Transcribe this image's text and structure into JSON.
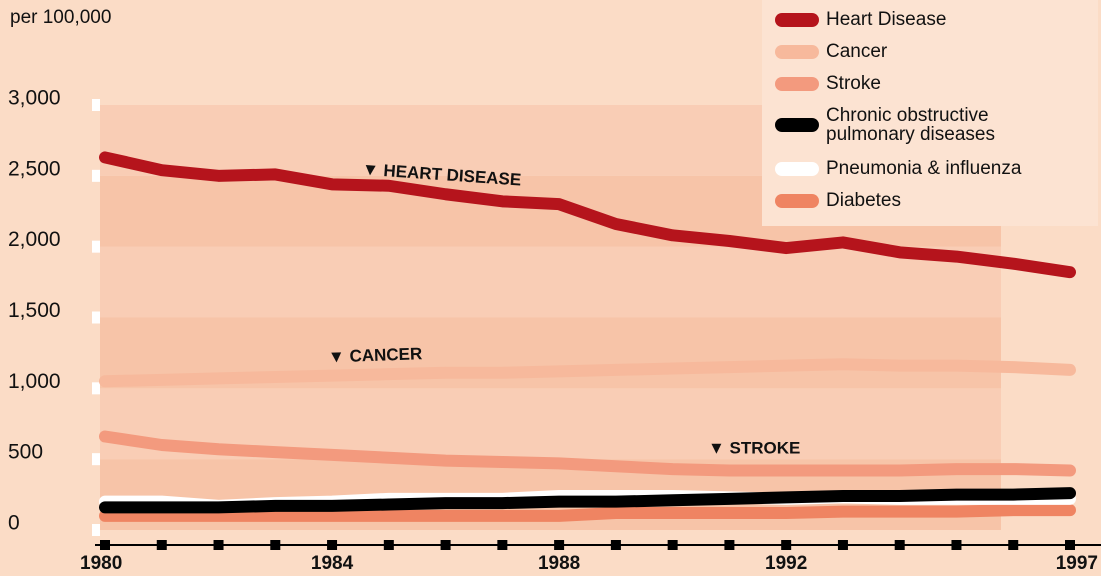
{
  "chart_data": {
    "type": "line",
    "y_label": "per 100,000",
    "x": [
      1980,
      1981,
      1982,
      1983,
      1984,
      1985,
      1986,
      1987,
      1988,
      1989,
      1990,
      1991,
      1992,
      1993,
      1994,
      1995,
      1996,
      1997
    ],
    "xlim": [
      1980,
      1997
    ],
    "xticks": [
      1980,
      1984,
      1988,
      1992,
      1997
    ],
    "ylim": [
      0,
      3000
    ],
    "yticks": [
      0,
      500,
      {
        "value": 1000,
        "label": "1,000"
      },
      {
        "value": 1500,
        "label": "1,500"
      },
      {
        "value": 2000,
        "label": "2,000"
      },
      {
        "value": 2500,
        "label": "2,500"
      },
      {
        "value": 3000,
        "label": "3,000"
      }
    ],
    "legend": "top-right",
    "series": [
      {
        "name": "Heart Disease",
        "color": "#b5141c",
        "values": [
          2630,
          2540,
          2500,
          2510,
          2440,
          2430,
          2370,
          2320,
          2300,
          2160,
          2080,
          2040,
          1990,
          2030,
          1960,
          1930,
          1880,
          1820
        ]
      },
      {
        "name": "Cancer",
        "color": "#f7b99c",
        "values": [
          1050,
          1060,
          1070,
          1080,
          1090,
          1100,
          1110,
          1110,
          1120,
          1130,
          1140,
          1150,
          1160,
          1170,
          1160,
          1160,
          1150,
          1130
        ]
      },
      {
        "name": "Stroke",
        "color": "#f39a7e",
        "values": [
          660,
          600,
          570,
          550,
          530,
          510,
          490,
          480,
          470,
          450,
          430,
          420,
          420,
          420,
          420,
          430,
          430,
          420
        ]
      },
      {
        "name": "Chronic obstructive\npulmonary diseases",
        "color": "#000000",
        "values": [
          160,
          160,
          160,
          170,
          170,
          180,
          190,
          190,
          200,
          200,
          210,
          220,
          230,
          240,
          240,
          250,
          250,
          260
        ]
      },
      {
        "name": "Pneumonia & influenza",
        "color": "#ffffff",
        "values": [
          200,
          200,
          170,
          190,
          200,
          220,
          220,
          220,
          240,
          240,
          240,
          230,
          220,
          230,
          220,
          220,
          220,
          220
        ]
      },
      {
        "name": "Diabetes",
        "color": "#ef8462",
        "values": [
          100,
          100,
          100,
          100,
          100,
          100,
          100,
          100,
          100,
          120,
          120,
          120,
          120,
          130,
          130,
          130,
          140,
          140
        ]
      }
    ],
    "annotations": [
      "▼ HEART DISEASE",
      "▼ CANCER",
      "▼ STROKE"
    ]
  }
}
